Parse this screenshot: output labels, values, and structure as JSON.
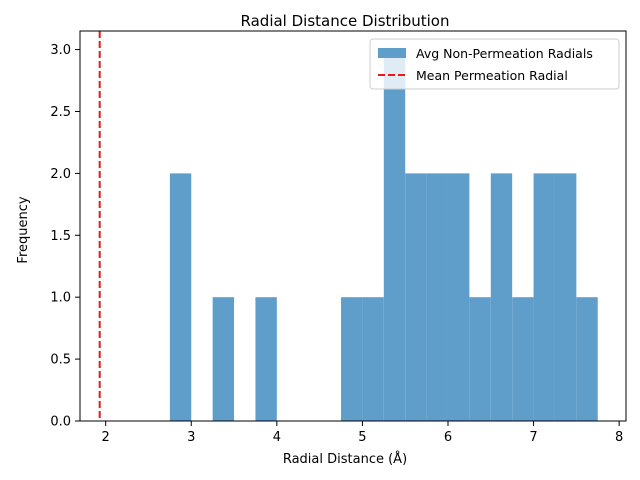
{
  "chart_data": {
    "type": "bar",
    "title": "Radial Distance Distribution",
    "xlabel": "Radial Distance (Å)",
    "ylabel": "Frequency",
    "xlim": [
      1.7,
      8.08
    ],
    "ylim": [
      0,
      3.15
    ],
    "xticks": [
      "2",
      "3",
      "4",
      "5",
      "6",
      "7",
      "8"
    ],
    "yticks": [
      "0.0",
      "0.5",
      "1.0",
      "1.5",
      "2.0",
      "2.5",
      "3.0"
    ],
    "grid": false,
    "legend_position": "top-right",
    "series": [
      {
        "name": "Avg Non-Permeation Radials",
        "kind": "histogram",
        "color": "#5f9ecb",
        "bins": [
          {
            "x0": 2.75,
            "x1": 3.0,
            "count": 2
          },
          {
            "x0": 3.25,
            "x1": 3.5,
            "count": 1
          },
          {
            "x0": 3.75,
            "x1": 4.0,
            "count": 1
          },
          {
            "x0": 4.75,
            "x1": 5.0,
            "count": 1
          },
          {
            "x0": 5.0,
            "x1": 5.25,
            "count": 1
          },
          {
            "x0": 5.25,
            "x1": 5.5,
            "count": 3
          },
          {
            "x0": 5.5,
            "x1": 5.75,
            "count": 2
          },
          {
            "x0": 5.75,
            "x1": 6.0,
            "count": 2
          },
          {
            "x0": 6.0,
            "x1": 6.25,
            "count": 2
          },
          {
            "x0": 6.25,
            "x1": 6.5,
            "count": 1
          },
          {
            "x0": 6.5,
            "x1": 6.75,
            "count": 2
          },
          {
            "x0": 6.75,
            "x1": 7.0,
            "count": 1
          },
          {
            "x0": 7.0,
            "x1": 7.25,
            "count": 2
          },
          {
            "x0": 7.25,
            "x1": 7.5,
            "count": 2
          },
          {
            "x0": 7.5,
            "x1": 7.75,
            "count": 1
          }
        ]
      },
      {
        "name": "Mean Permeation Radial",
        "kind": "vline",
        "color": "#e41a1c",
        "x": 1.93
      }
    ]
  }
}
